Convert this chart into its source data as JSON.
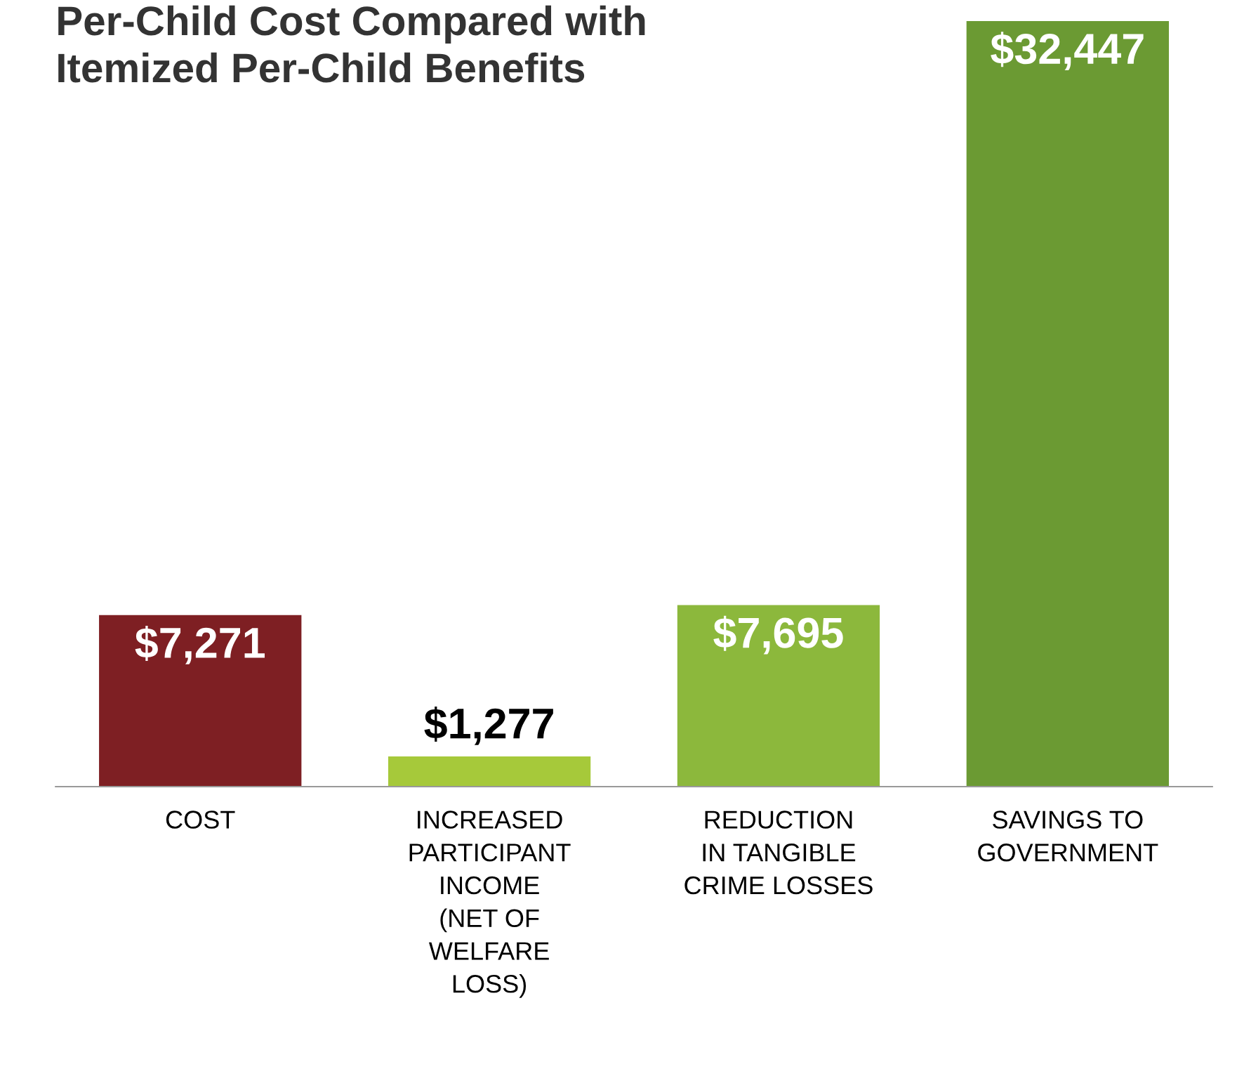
{
  "chart_data": {
    "type": "bar",
    "title": "Per-Child Cost Compared with\nItemized Per-Child Benefits",
    "categories": [
      "COST",
      "INCREASED\nPARTICIPANT\nINCOME\n(NET OF\nWELFARE\nLOSS)",
      "REDUCTION\nIN TANGIBLE\nCRIME LOSSES",
      "SAVINGS TO\nGOVERNMENT"
    ],
    "values": [
      7271,
      1277,
      7695,
      32447
    ],
    "value_labels": [
      "$7,271",
      "$1,277",
      "$7,695",
      "$32,447"
    ],
    "colors": [
      "#7e1f23",
      "#a6c93a",
      "#8cb83c",
      "#6b9a33"
    ],
    "grid": false,
    "legend": false
  }
}
